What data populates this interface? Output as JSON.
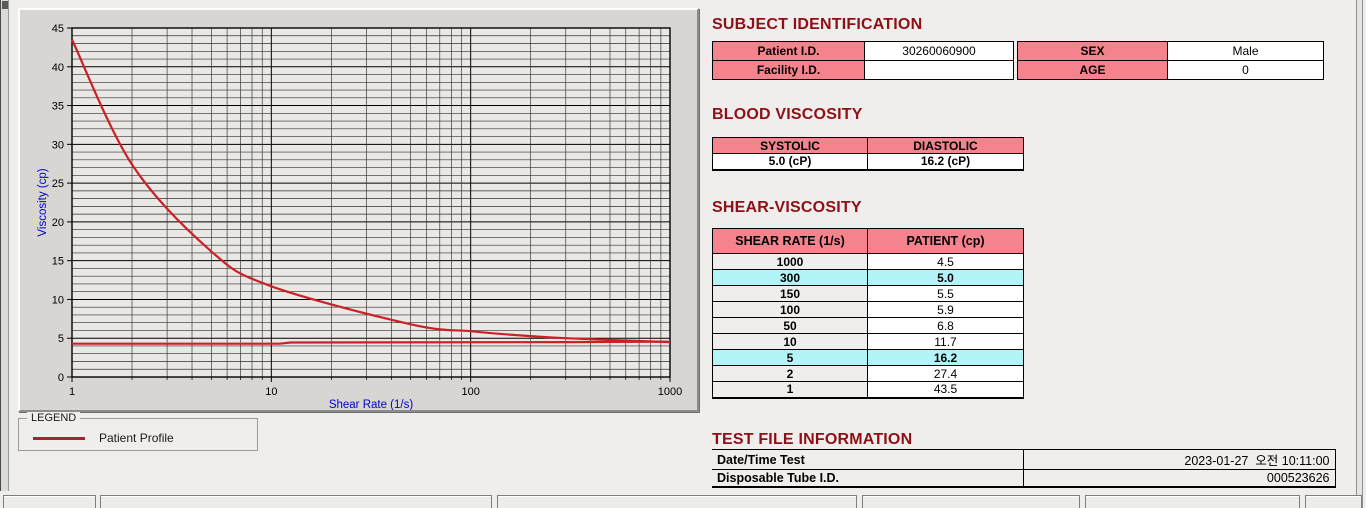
{
  "colors": {
    "header_pink": "#F5838D",
    "row_highlight_cyan": "#B2F4F8",
    "section_title_maroon": "#8E1016",
    "series_red": "#CC2027",
    "axis_label_blue": "#0000C8",
    "legend_line_red": "#A8212E"
  },
  "chart_data": {
    "type": "line",
    "x_scale": "log",
    "xlim": [
      1,
      1000
    ],
    "ylim": [
      0,
      45
    ],
    "y_tick_step": 5,
    "x_ticks": [
      1,
      10,
      100,
      1000
    ],
    "xlabel": "Shear Rate (1/s)",
    "ylabel": "Viscosity (cp)",
    "grid": "both",
    "legend_position": "below-left",
    "series": [
      {
        "name": "Patient Profile",
        "x": [
          1,
          2,
          5,
          10,
          50,
          100,
          150,
          300,
          1000
        ],
        "y": [
          43.5,
          27.4,
          16.2,
          11.7,
          6.8,
          5.9,
          5.5,
          5.0,
          4.5
        ]
      },
      {
        "name": "unlabeled flat trace",
        "x": [
          1,
          11,
          12.5,
          300,
          1000
        ],
        "y": [
          4.3,
          4.3,
          4.45,
          4.5,
          4.55
        ]
      }
    ]
  },
  "legend": {
    "title": "LEGEND",
    "entries": [
      {
        "label": "Patient Profile"
      }
    ]
  },
  "sections": {
    "subject": {
      "title": "SUBJECT IDENTIFICATION",
      "rows": [
        [
          "Patient I.D.",
          "30260060900",
          "SEX",
          "Male"
        ],
        [
          "Facility I.D.",
          "",
          "AGE",
          "0"
        ]
      ]
    },
    "blood": {
      "title": "BLOOD VISCOSITY",
      "headers": [
        "SYSTOLIC",
        "DIASTOLIC"
      ],
      "values": [
        "5.0 (cP)",
        "16.2 (cP)"
      ]
    },
    "shear": {
      "title": "SHEAR-VISCOSITY",
      "headers": [
        "SHEAR RATE (1/s)",
        "PATIENT (cp)"
      ],
      "rows": [
        {
          "rate": "1000",
          "value": "4.5",
          "highlight": false
        },
        {
          "rate": "300",
          "value": "5.0",
          "highlight": true
        },
        {
          "rate": "150",
          "value": "5.5",
          "highlight": false
        },
        {
          "rate": "100",
          "value": "5.9",
          "highlight": false
        },
        {
          "rate": "50",
          "value": "6.8",
          "highlight": false
        },
        {
          "rate": "10",
          "value": "11.7",
          "highlight": false
        },
        {
          "rate": "5",
          "value": "16.2",
          "highlight": true
        },
        {
          "rate": "2",
          "value": "27.4",
          "highlight": false
        },
        {
          "rate": "1",
          "value": "43.5",
          "highlight": false
        }
      ]
    },
    "testfile": {
      "title": "TEST FILE INFORMATION",
      "rows": [
        [
          "Date/Time Test",
          "2023-01-27  오전 10:11:00"
        ],
        [
          "Disposable Tube I.D.",
          "000523626"
        ]
      ]
    }
  }
}
